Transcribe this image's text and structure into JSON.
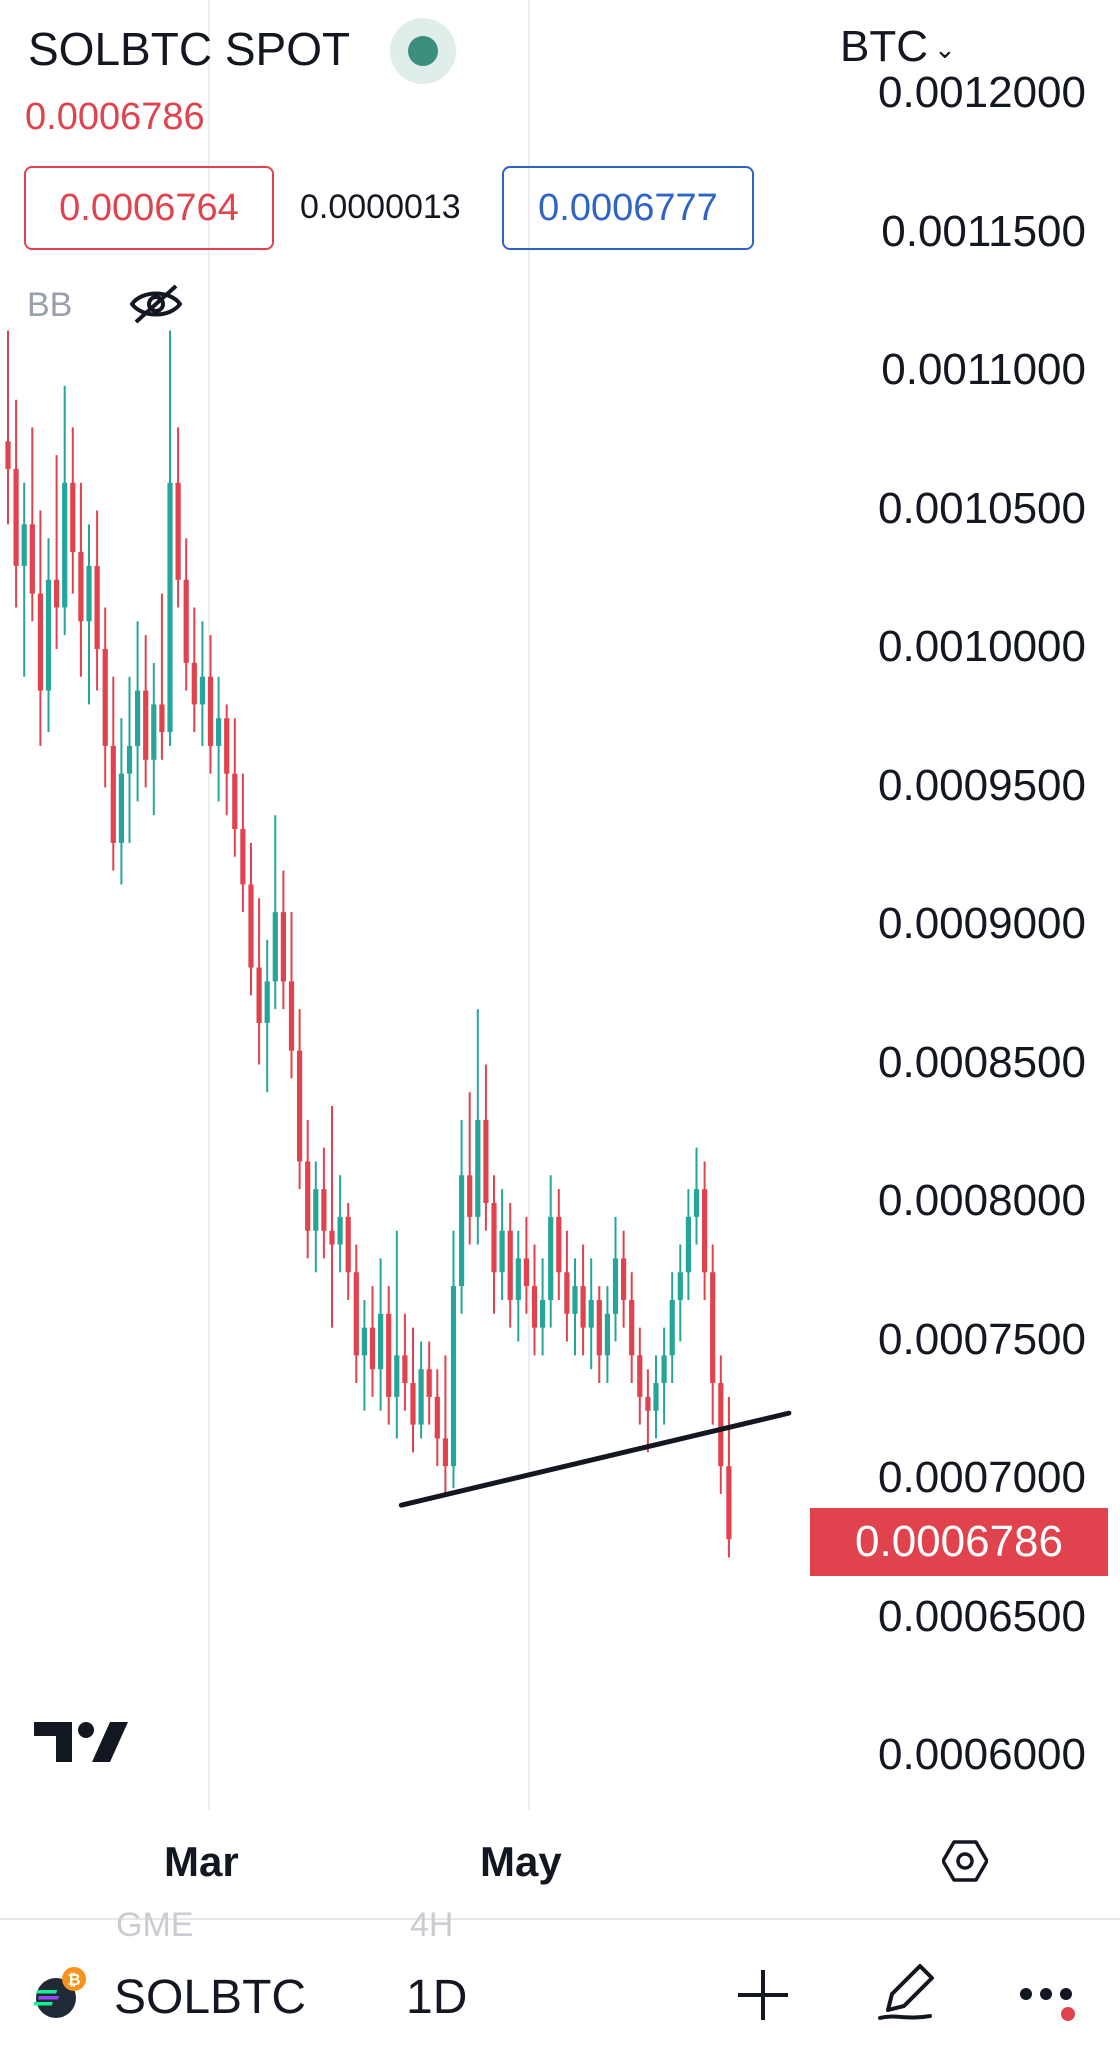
{
  "header": {
    "symbol_title": "SOLBTC SPOT",
    "last_price": "0.0006786",
    "bid": "0.0006764",
    "spread": "0.0000013",
    "ask": "0.0006777",
    "currency": "BTC",
    "status_color": "#3b8f7c"
  },
  "indicator": {
    "label": "BB",
    "visibility_icon": "eye-off-icon"
  },
  "price_axis": {
    "labels": [
      "0.0012000",
      "0.0011500",
      "0.0011000",
      "0.0010500",
      "0.0010000",
      "0.0009500",
      "0.0009000",
      "0.0008500",
      "0.0008000",
      "0.0007500",
      "0.0007000",
      "0.0006500",
      "0.0006000"
    ],
    "current_price": "0.0006786",
    "current_price_color": "#e0434e"
  },
  "time_axis": {
    "labels": [
      "Mar",
      "May"
    ],
    "settings_icon": "settings-hexagon-icon"
  },
  "ghost_row": {
    "left": "GME",
    "right": "4H"
  },
  "bottom_bar": {
    "coin_icon": "solana-bitcoin-icon",
    "symbol": "SOLBTC",
    "interval": "1D",
    "add_icon": "plus-icon",
    "draw_icon": "pen-icon",
    "more_icon": "more-dots-icon"
  },
  "colors": {
    "up": "#26a69a",
    "down": "#e0434e",
    "trendline": "#131722"
  },
  "chart_data": {
    "type": "candlestick",
    "symbol": "SOLBTC",
    "interval": "1D",
    "ylim": [
      0.00058,
      0.00121
    ],
    "current_price": 0.0006786,
    "candles": [
      [
        0.001075,
        0.001115,
        0.001045,
        0.001065
      ],
      [
        0.001065,
        0.00109,
        0.001015,
        0.00103
      ],
      [
        0.00103,
        0.00106,
        0.00099,
        0.001045
      ],
      [
        0.001045,
        0.00108,
        0.00101,
        0.00102
      ],
      [
        0.00102,
        0.00105,
        0.000965,
        0.000985
      ],
      [
        0.000985,
        0.00104,
        0.00097,
        0.001025
      ],
      [
        0.001025,
        0.00107,
        0.001,
        0.001015
      ],
      [
        0.001015,
        0.001095,
        0.001005,
        0.00106
      ],
      [
        0.00106,
        0.00108,
        0.00102,
        0.001035
      ],
      [
        0.001035,
        0.00106,
        0.00099,
        0.00101
      ],
      [
        0.00101,
        0.001045,
        0.00098,
        0.00103
      ],
      [
        0.00103,
        0.00105,
        0.000985,
        0.001
      ],
      [
        0.001,
        0.001015,
        0.00095,
        0.000965
      ],
      [
        0.000965,
        0.00099,
        0.00092,
        0.00093
      ],
      [
        0.00093,
        0.000975,
        0.000915,
        0.000955
      ],
      [
        0.000955,
        0.00099,
        0.00093,
        0.000965
      ],
      [
        0.000965,
        0.00101,
        0.000945,
        0.000985
      ],
      [
        0.000985,
        0.001005,
        0.00095,
        0.00096
      ],
      [
        0.00096,
        0.000995,
        0.00094,
        0.00098
      ],
      [
        0.00098,
        0.00102,
        0.00096,
        0.00097
      ],
      [
        0.00097,
        0.001115,
        0.000965,
        0.00106
      ],
      [
        0.00106,
        0.00108,
        0.001015,
        0.001025
      ],
      [
        0.001025,
        0.00104,
        0.000985,
        0.000995
      ],
      [
        0.000995,
        0.001015,
        0.00097,
        0.00098
      ],
      [
        0.00098,
        0.00101,
        0.000965,
        0.00099
      ],
      [
        0.00099,
        0.001005,
        0.000955,
        0.000965
      ],
      [
        0.000965,
        0.00099,
        0.000945,
        0.000975
      ],
      [
        0.000975,
        0.00098,
        0.00094,
        0.000955
      ],
      [
        0.000955,
        0.000975,
        0.000925,
        0.000935
      ],
      [
        0.000935,
        0.000955,
        0.000905,
        0.000915
      ],
      [
        0.000915,
        0.00093,
        0.000875,
        0.000885
      ],
      [
        0.000885,
        0.00091,
        0.00085,
        0.000865
      ],
      [
        0.000865,
        0.000895,
        0.00084,
        0.00088
      ],
      [
        0.00088,
        0.00094,
        0.00087,
        0.000905
      ],
      [
        0.000905,
        0.00092,
        0.00087,
        0.00088
      ],
      [
        0.00088,
        0.000905,
        0.000845,
        0.000855
      ],
      [
        0.000855,
        0.00087,
        0.000805,
        0.000815
      ],
      [
        0.000815,
        0.00083,
        0.00078,
        0.00079
      ],
      [
        0.00079,
        0.000815,
        0.000775,
        0.000805
      ],
      [
        0.000805,
        0.00082,
        0.00078,
        0.00079
      ],
      [
        0.00079,
        0.000835,
        0.000755,
        0.000785
      ],
      [
        0.000785,
        0.00081,
        0.000775,
        0.000795
      ],
      [
        0.000795,
        0.0008,
        0.000765,
        0.000775
      ],
      [
        0.000775,
        0.000785,
        0.000735,
        0.000745
      ],
      [
        0.000745,
        0.000765,
        0.000725,
        0.000755
      ],
      [
        0.000755,
        0.00077,
        0.00073,
        0.00074
      ],
      [
        0.00074,
        0.00078,
        0.000725,
        0.00076
      ],
      [
        0.00076,
        0.00077,
        0.00072,
        0.00073
      ],
      [
        0.00073,
        0.00079,
        0.000715,
        0.000745
      ],
      [
        0.000745,
        0.00076,
        0.000725,
        0.000735
      ],
      [
        0.000735,
        0.000755,
        0.00071,
        0.00072
      ],
      [
        0.00072,
        0.00075,
        0.000715,
        0.00074
      ],
      [
        0.00074,
        0.00075,
        0.00072,
        0.00073
      ],
      [
        0.00073,
        0.00074,
        0.000705,
        0.000715
      ],
      [
        0.000715,
        0.000745,
        0.000695,
        0.000705
      ],
      [
        0.000705,
        0.00079,
        0.000697,
        0.00077
      ],
      [
        0.00077,
        0.00083,
        0.00076,
        0.00081
      ],
      [
        0.00081,
        0.00084,
        0.000785,
        0.000795
      ],
      [
        0.000795,
        0.00087,
        0.000785,
        0.00083
      ],
      [
        0.00083,
        0.00085,
        0.00079,
        0.0008
      ],
      [
        0.0008,
        0.00081,
        0.00076,
        0.000775
      ],
      [
        0.000775,
        0.000805,
        0.000765,
        0.00079
      ],
      [
        0.00079,
        0.0008,
        0.000755,
        0.000765
      ],
      [
        0.000765,
        0.00079,
        0.00075,
        0.00078
      ],
      [
        0.00078,
        0.000795,
        0.00076,
        0.00077
      ],
      [
        0.00077,
        0.000785,
        0.000745,
        0.000755
      ],
      [
        0.000755,
        0.00078,
        0.000745,
        0.000765
      ],
      [
        0.000765,
        0.00081,
        0.000755,
        0.000795
      ],
      [
        0.000795,
        0.000805,
        0.000765,
        0.000775
      ],
      [
        0.000775,
        0.00079,
        0.00075,
        0.00076
      ],
      [
        0.00076,
        0.00078,
        0.000745,
        0.00077
      ],
      [
        0.00077,
        0.000785,
        0.000745,
        0.000755
      ],
      [
        0.000755,
        0.00078,
        0.00074,
        0.000765
      ],
      [
        0.000765,
        0.00077,
        0.000735,
        0.000745
      ],
      [
        0.000745,
        0.00077,
        0.000735,
        0.00076
      ],
      [
        0.00076,
        0.000795,
        0.00075,
        0.00078
      ],
      [
        0.00078,
        0.00079,
        0.000755,
        0.000765
      ],
      [
        0.000765,
        0.000775,
        0.000735,
        0.000745
      ],
      [
        0.000745,
        0.000755,
        0.00072,
        0.00073
      ],
      [
        0.00073,
        0.00074,
        0.00071,
        0.000725
      ],
      [
        0.000725,
        0.000745,
        0.000715,
        0.000735
      ],
      [
        0.000735,
        0.000755,
        0.00072,
        0.000745
      ],
      [
        0.000745,
        0.000775,
        0.000735,
        0.000765
      ],
      [
        0.000765,
        0.000785,
        0.00075,
        0.000775
      ],
      [
        0.000775,
        0.000805,
        0.000765,
        0.000795
      ],
      [
        0.000795,
        0.00082,
        0.000785,
        0.000805
      ],
      [
        0.000805,
        0.000815,
        0.000765,
        0.000775
      ],
      [
        0.000775,
        0.000785,
        0.00072,
        0.000735
      ],
      [
        0.000735,
        0.000745,
        0.000695,
        0.000705
      ],
      [
        0.000705,
        0.00073,
        0.000672,
        0.0006786
      ]
    ],
    "trendline": {
      "start": {
        "index": 53,
        "price": 0.000694
      },
      "end": {
        "index": 89,
        "price": 0.000719
      }
    }
  }
}
